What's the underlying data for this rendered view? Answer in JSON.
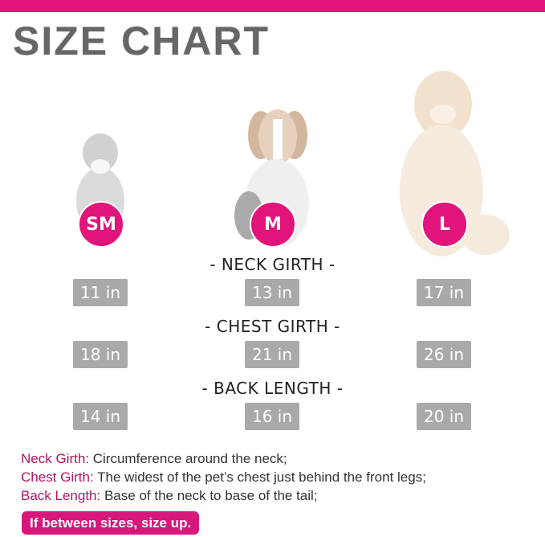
{
  "title": "SIZE CHART",
  "accent_color": "#e0147a",
  "sizes": [
    {
      "label": "SM",
      "neck": "11 in",
      "chest": "18 in",
      "back": "14 in"
    },
    {
      "label": "M",
      "neck": "13 in",
      "chest": "21 in",
      "back": "16 in"
    },
    {
      "label": "L",
      "neck": "17 in",
      "chest": "26 in",
      "back": "20 in"
    }
  ],
  "headers": {
    "neck": "- NECK GIRTH -",
    "chest": "- CHEST GIRTH -",
    "back": "- BACK LENGTH -"
  },
  "notes": [
    {
      "term": "Neck Girth:",
      "desc": " Circumference around the neck;"
    },
    {
      "term": "Chest Girth:",
      "desc": " The widest of the pet’s chest just behind the front legs;"
    },
    {
      "term": "Back Length:",
      "desc": " Base of the neck to base of the tail;"
    }
  ],
  "tip": "If between sizes, size up."
}
